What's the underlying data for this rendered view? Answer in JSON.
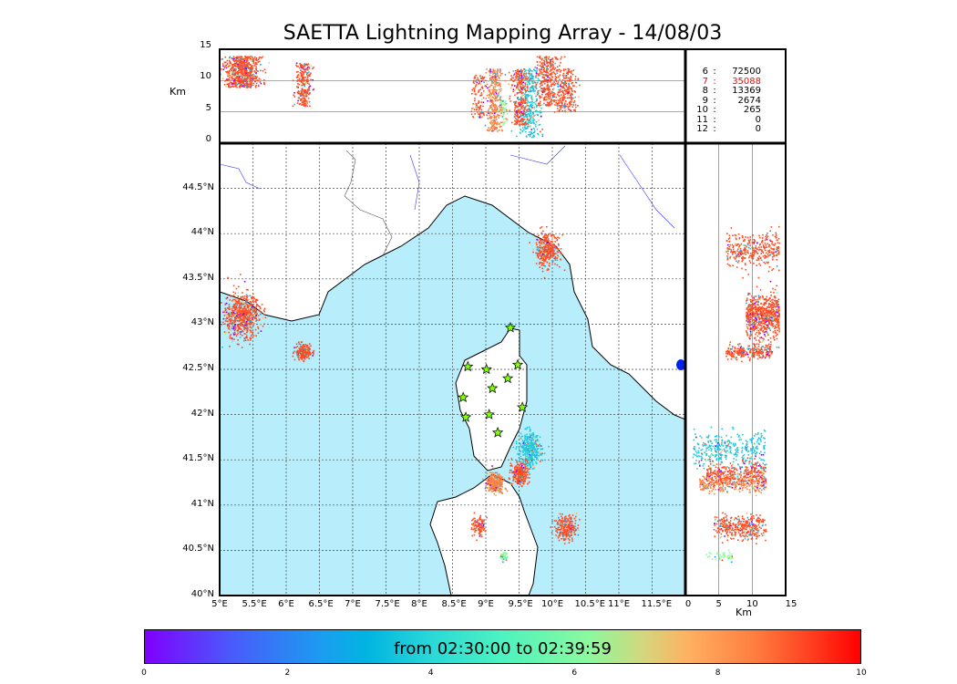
{
  "title": "SAETTA Lightning Mapping Array - 14/08/03",
  "colors": {
    "sea": "#b8eefc",
    "land": "#ffffff",
    "station": "#7fff00"
  },
  "stats": [
    {
      "k": "6",
      "v": "72500",
      "color": "#000000"
    },
    {
      "k": "7",
      "v": "35088",
      "color": "#ff0000"
    },
    {
      "k": "8",
      "v": "13369",
      "color": "#000000"
    },
    {
      "k": "9",
      "v": "2674",
      "color": "#000000"
    },
    {
      "k": "10",
      "v": "265",
      "color": "#000000"
    },
    {
      "k": "11",
      "v": "0",
      "color": "#000000"
    },
    {
      "k": "12",
      "v": "0",
      "color": "#000000"
    }
  ],
  "chart_data": {
    "type": "scatter",
    "lon_ticks": [
      "5°E",
      "5.5°E",
      "6°E",
      "6.5°E",
      "7°E",
      "7.5°E",
      "8°E",
      "8.5°E",
      "9°E",
      "9.5°E",
      "10°E",
      "10.5°E",
      "11°E",
      "11.5°E"
    ],
    "lat_ticks": [
      "40°N",
      "40.5°N",
      "41°N",
      "41.5°N",
      "42°N",
      "42.5°N",
      "43°N",
      "43.5°N",
      "44°N",
      "44.5°N"
    ],
    "lon_range": [
      5,
      12
    ],
    "lat_range": [
      40,
      45
    ],
    "alt_ticks": [
      "0",
      "5",
      "10",
      "15"
    ],
    "alt_range": [
      0,
      15
    ],
    "alt_label": "Km",
    "stations": [
      [
        9.37,
        42.96
      ],
      [
        8.73,
        42.53
      ],
      [
        9.01,
        42.5
      ],
      [
        9.48,
        42.55
      ],
      [
        9.1,
        42.29
      ],
      [
        9.33,
        42.4
      ],
      [
        8.66,
        42.19
      ],
      [
        9.55,
        42.08
      ],
      [
        9.05,
        42.0
      ],
      [
        8.7,
        41.97
      ],
      [
        9.18,
        41.8
      ]
    ],
    "clusters": [
      {
        "lon": 5.33,
        "lat": 43.1,
        "slon": 0.14,
        "slat": 0.12,
        "alt": [
          9,
          14
        ],
        "n": 700,
        "main": "#ff4b23"
      },
      {
        "lon": 6.25,
        "lat": 42.7,
        "slon": 0.06,
        "slat": 0.04,
        "alt": [
          6,
          13
        ],
        "n": 250,
        "main": "#ff4b23"
      },
      {
        "lon": 9.92,
        "lat": 43.82,
        "slon": 0.09,
        "slat": 0.1,
        "alt": [
          6,
          14
        ],
        "n": 350,
        "main": "#ff4b23"
      },
      {
        "lon": 9.65,
        "lat": 41.62,
        "slon": 0.08,
        "slat": 0.1,
        "alt": [
          1,
          12
        ],
        "n": 350,
        "main": "#22c8dc"
      },
      {
        "lon": 9.12,
        "lat": 41.25,
        "slon": 0.06,
        "slat": 0.05,
        "alt": [
          2,
          12
        ],
        "n": 350,
        "main": "#ff8040"
      },
      {
        "lon": 9.5,
        "lat": 41.35,
        "slon": 0.06,
        "slat": 0.06,
        "alt": [
          3,
          12
        ],
        "n": 300,
        "main": "#ff4b23"
      },
      {
        "lon": 10.2,
        "lat": 40.75,
        "slon": 0.08,
        "slat": 0.07,
        "alt": [
          5,
          12
        ],
        "n": 250,
        "main": "#ff4b23"
      },
      {
        "lon": 8.88,
        "lat": 40.77,
        "slon": 0.05,
        "slat": 0.05,
        "alt": [
          4,
          11
        ],
        "n": 120,
        "main": "#ff4b23"
      },
      {
        "lon": 9.26,
        "lat": 40.43,
        "slon": 0.03,
        "slat": 0.03,
        "alt": [
          3,
          7
        ],
        "n": 40,
        "main": "#8bf99e"
      }
    ],
    "colorbar": {
      "ticks": [
        "0",
        "2",
        "4",
        "6",
        "8",
        "10"
      ],
      "range": [
        0,
        10
      ],
      "label": "from 02:30:00 to 02:39:59"
    }
  }
}
